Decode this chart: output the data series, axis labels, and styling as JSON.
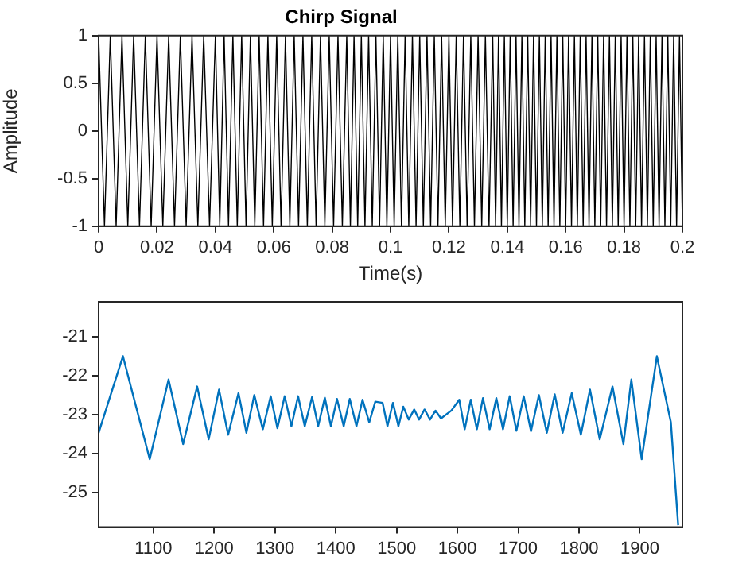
{
  "chart_data": [
    {
      "type": "line",
      "title": "Chirp Signal",
      "xlabel": "Time(s)",
      "ylabel": "Amplitude",
      "xlim": [
        0,
        0.2
      ],
      "xticks": [
        0,
        0.02,
        0.04,
        0.06,
        0.08,
        0.1,
        0.12,
        0.14,
        0.16,
        0.18,
        0.2
      ],
      "ylim": [
        -1,
        1
      ],
      "yticks": [
        -1,
        -0.5,
        0,
        0.5,
        1
      ],
      "grid": false,
      "legend": false,
      "marker": "none",
      "series": [
        {
          "color": "#000000",
          "x": [
            0,
            0.002,
            0.004,
            0.006,
            0.008,
            0.01,
            0.012,
            0.014,
            0.016,
            0.018,
            0.02,
            0.022,
            0.024,
            0.026,
            0.028,
            0.03,
            0.032,
            0.034,
            0.036,
            0.038,
            0.04,
            0.0415,
            0.043,
            0.0445,
            0.046,
            0.0475,
            0.049,
            0.0505,
            0.052,
            0.0535,
            0.055,
            0.0565,
            0.058,
            0.0595,
            0.061,
            0.0625,
            0.064,
            0.0655,
            0.067,
            0.0685,
            0.07,
            0.0715,
            0.073,
            0.0745,
            0.076,
            0.0775,
            0.079,
            0.0805,
            0.082,
            0.0835,
            0.085,
            0.08625,
            0.0875,
            0.08875,
            0.09,
            0.09125,
            0.0925,
            0.09375,
            0.095,
            0.09625,
            0.0975,
            0.09875,
            0.1,
            0.10125,
            0.1025,
            0.10375,
            0.105,
            0.10625,
            0.1075,
            0.10875,
            0.11,
            0.11125,
            0.1125,
            0.11375,
            0.115,
            0.11625,
            0.1175,
            0.11875,
            0.12,
            0.12125,
            0.1225,
            0.12375,
            0.125,
            0.12625,
            0.1275,
            0.12875,
            0.13,
            0.13125,
            0.1325,
            0.13375,
            0.135,
            0.136,
            0.137,
            0.138,
            0.139,
            0.14,
            0.141,
            0.142,
            0.143,
            0.144,
            0.145,
            0.146,
            0.147,
            0.148,
            0.149,
            0.15,
            0.151,
            0.152,
            0.153,
            0.154,
            0.155,
            0.156,
            0.157,
            0.158,
            0.159,
            0.16,
            0.161,
            0.162,
            0.163,
            0.164,
            0.165,
            0.166,
            0.167,
            0.168,
            0.169,
            0.17,
            0.171,
            0.172,
            0.173,
            0.174,
            0.175,
            0.176,
            0.177,
            0.178,
            0.179,
            0.18,
            0.181,
            0.182,
            0.183,
            0.184,
            0.185,
            0.186,
            0.187,
            0.188,
            0.189,
            0.19,
            0.191,
            0.192,
            0.193,
            0.194,
            0.195,
            0.196,
            0.197,
            0.198,
            0.199,
            0.2
          ],
          "values": [
            1,
            -1,
            1,
            -1,
            1,
            -1,
            1,
            -1,
            1,
            -1,
            1,
            -1,
            1,
            -1,
            1,
            -1,
            1,
            -1,
            1,
            -1,
            1,
            -1,
            1,
            -1,
            1,
            -1,
            1,
            -1,
            1,
            -1,
            1,
            -1,
            1,
            -1,
            1,
            -1,
            1,
            -1,
            1,
            -1,
            1,
            -1,
            1,
            -1,
            1,
            -1,
            1,
            -1,
            1,
            -1,
            1,
            -1,
            1,
            -1,
            1,
            -1,
            1,
            -1,
            1,
            -1,
            1,
            -1,
            1,
            -1,
            1,
            -1,
            1,
            -1,
            1,
            -1,
            1,
            -1,
            1,
            -1,
            1,
            -1,
            1,
            -1,
            1,
            -1,
            1,
            -1,
            1,
            -1,
            1,
            -1,
            1,
            -1,
            1,
            -1,
            1,
            -1,
            1,
            -1,
            1,
            -1,
            1,
            -1,
            1,
            -1,
            1,
            -1,
            1,
            -1,
            1,
            -1,
            1,
            -1,
            1,
            -1,
            1,
            -1,
            1,
            -1,
            1,
            -1,
            1,
            -1,
            1,
            -1,
            1,
            -1,
            1,
            -1,
            1,
            -1,
            1,
            -1,
            1,
            -1,
            1,
            -1,
            1,
            -1,
            1,
            -1,
            1,
            -1,
            1,
            -1,
            1,
            -1,
            1,
            -1,
            1,
            -1,
            1,
            -1,
            1,
            -1,
            1,
            -1,
            1,
            -1,
            1,
            -1
          ]
        }
      ]
    },
    {
      "type": "line",
      "xlim": [
        1010,
        1970
      ],
      "xticks": [
        1100,
        1200,
        1300,
        1400,
        1500,
        1600,
        1700,
        1800,
        1900
      ],
      "ylim": [
        -25.9,
        -20.1
      ],
      "yticks": [
        -25,
        -24,
        -23,
        -22,
        -21
      ],
      "grid": false,
      "legend": false,
      "marker": "none",
      "series": [
        {
          "color": "#0072bd",
          "x": [
            1010,
            1050,
            1094,
            1125,
            1149,
            1172,
            1191,
            1208,
            1223,
            1240,
            1253,
            1266,
            1280,
            1293,
            1304,
            1316,
            1327,
            1338,
            1349,
            1361,
            1371,
            1382,
            1392,
            1402,
            1413,
            1423,
            1434,
            1444,
            1455,
            1465,
            1477,
            1485,
            1494,
            1503,
            1511,
            1520,
            1529,
            1537,
            1546,
            1555,
            1564,
            1573,
            1590,
            1603,
            1612,
            1622,
            1632,
            1642,
            1653,
            1664,
            1675,
            1686,
            1697,
            1709,
            1721,
            1734,
            1747,
            1760,
            1773,
            1788,
            1803,
            1818,
            1834,
            1855,
            1873,
            1886,
            1903,
            1928,
            1951,
            1963
          ],
          "values": [
            -23.47,
            -21.5,
            -24.15,
            -22.1,
            -23.76,
            -22.28,
            -23.64,
            -22.36,
            -23.52,
            -22.45,
            -23.47,
            -22.5,
            -23.38,
            -22.53,
            -23.35,
            -22.53,
            -23.3,
            -22.53,
            -23.3,
            -22.55,
            -23.3,
            -22.57,
            -23.3,
            -22.6,
            -23.3,
            -22.6,
            -23.3,
            -22.62,
            -23.2,
            -22.67,
            -22.7,
            -23.3,
            -22.7,
            -23.3,
            -22.8,
            -23.13,
            -22.87,
            -23.13,
            -22.87,
            -23.13,
            -22.9,
            -23.1,
            -22.9,
            -22.62,
            -23.38,
            -22.62,
            -23.38,
            -22.58,
            -23.38,
            -22.58,
            -23.38,
            -22.53,
            -23.42,
            -22.53,
            -23.43,
            -22.5,
            -23.47,
            -22.48,
            -23.47,
            -22.45,
            -23.52,
            -22.36,
            -23.64,
            -22.28,
            -23.76,
            -22.1,
            -24.15,
            -21.5,
            -23.2,
            -25.85
          ]
        }
      ]
    }
  ]
}
